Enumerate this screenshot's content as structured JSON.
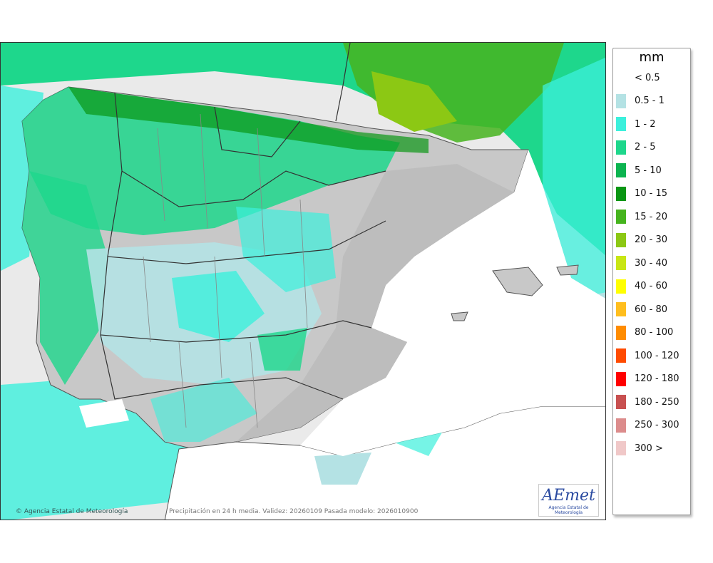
{
  "legend": {
    "unit": "mm",
    "entries": [
      {
        "label": "< 0.5",
        "color": "#ffffff"
      },
      {
        "label": "0.5 - 1",
        "color": "#b4e2e4"
      },
      {
        "label": "1 - 2",
        "color": "#3cf0dc"
      },
      {
        "label": "2 - 5",
        "color": "#1ed78c"
      },
      {
        "label": "5 - 10",
        "color": "#0cb450"
      },
      {
        "label": "10 - 15",
        "color": "#0a9614"
      },
      {
        "label": "15 - 20",
        "color": "#46b41e"
      },
      {
        "label": "20 - 30",
        "color": "#8cc814"
      },
      {
        "label": "30 - 40",
        "color": "#c8e614"
      },
      {
        "label": "40 - 60",
        "color": "#ffff00"
      },
      {
        "label": "60 - 80",
        "color": "#ffbe1e"
      },
      {
        "label": "80 - 100",
        "color": "#ff8c00"
      },
      {
        "label": "100 - 120",
        "color": "#ff4b00"
      },
      {
        "label": "120 - 180",
        "color": "#ff0000"
      },
      {
        "label": "180 - 250",
        "color": "#c85050"
      },
      {
        "label": "250 - 300",
        "color": "#dc8c8c"
      },
      {
        "label": "300 >",
        "color": "#f0c8c8"
      }
    ]
  },
  "credit": "© Agencia Estatal de Meteorología",
  "footnote": "Precipitación en 24 h media. Validez: 20260109 Pasada modelo: 2026010900",
  "logo": {
    "mark": "AEmet",
    "subtitle": "Agencia Estatal de Meteorología"
  },
  "colors": {
    "sea_background": "#eaeaea",
    "land_relief": "#c8c8c8",
    "border_line": "#333333"
  }
}
